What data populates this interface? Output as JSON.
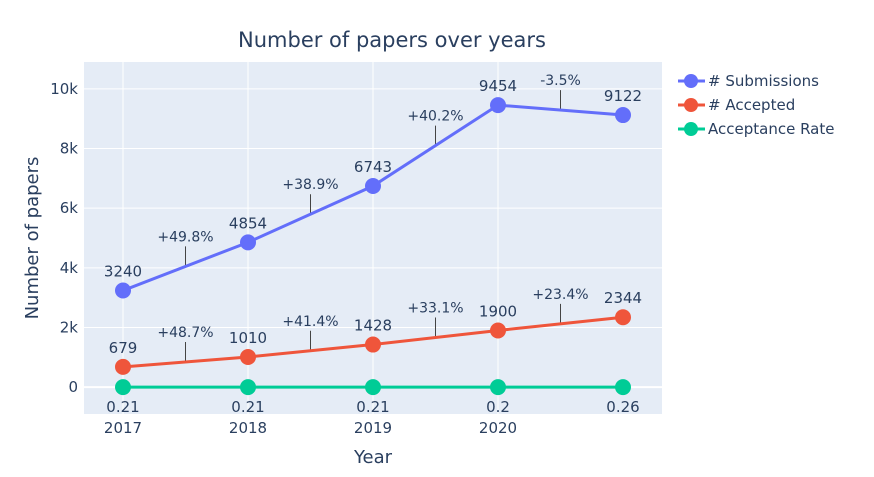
{
  "chart_data": {
    "type": "line",
    "title": "Number of papers over years",
    "xlabel": "Year",
    "ylabel": "Number of papers",
    "x_ticks": [
      "2017",
      "2018",
      "2019",
      "2020"
    ],
    "x": [
      2017,
      2018,
      2019,
      2020,
      2021
    ],
    "ylim": [
      -900,
      10900
    ],
    "y_ticks": [
      {
        "value": 0,
        "label": "0"
      },
      {
        "value": 2000,
        "label": "2k"
      },
      {
        "value": 4000,
        "label": "4k"
      },
      {
        "value": 6000,
        "label": "6k"
      },
      {
        "value": 8000,
        "label": "8k"
      },
      {
        "value": 10000,
        "label": "10k"
      }
    ],
    "grid": true,
    "legend_position": "top-right",
    "series": [
      {
        "name": "# Submissions",
        "color": "#636efa",
        "values": [
          3240,
          4854,
          6743,
          9454,
          9122
        ],
        "labels": [
          "3240",
          "4854",
          "6743",
          "9454",
          "9122"
        ],
        "label_position": "above"
      },
      {
        "name": "# Accepted",
        "color": "#ef553b",
        "values": [
          679,
          1010,
          1428,
          1900,
          2344
        ],
        "labels": [
          "679",
          "1010",
          "1428",
          "1900",
          "2344"
        ],
        "label_position": "above"
      },
      {
        "name": "Acceptance Rate",
        "color": "#00cc96",
        "values": [
          0.21,
          0.21,
          0.21,
          0.2,
          0.26
        ],
        "labels": [
          "0.21",
          "0.21",
          "0.21",
          "0.2",
          "0.26"
        ],
        "label_position": "below"
      }
    ],
    "annotations": [
      {
        "text": "+49.8%",
        "x": 2017.5,
        "y": 4047
      },
      {
        "text": "+38.9%",
        "x": 2018.5,
        "y": 5798
      },
      {
        "text": "+40.2%",
        "x": 2019.5,
        "y": 8098
      },
      {
        "text": "-3.5%",
        "x": 2020.5,
        "y": 9288
      },
      {
        "text": "+48.7%",
        "x": 2017.5,
        "y": 844
      },
      {
        "text": "+41.4%",
        "x": 2018.5,
        "y": 1219
      },
      {
        "text": "+33.1%",
        "x": 2019.5,
        "y": 1664
      },
      {
        "text": "+23.4%",
        "x": 2020.5,
        "y": 2122
      }
    ]
  }
}
